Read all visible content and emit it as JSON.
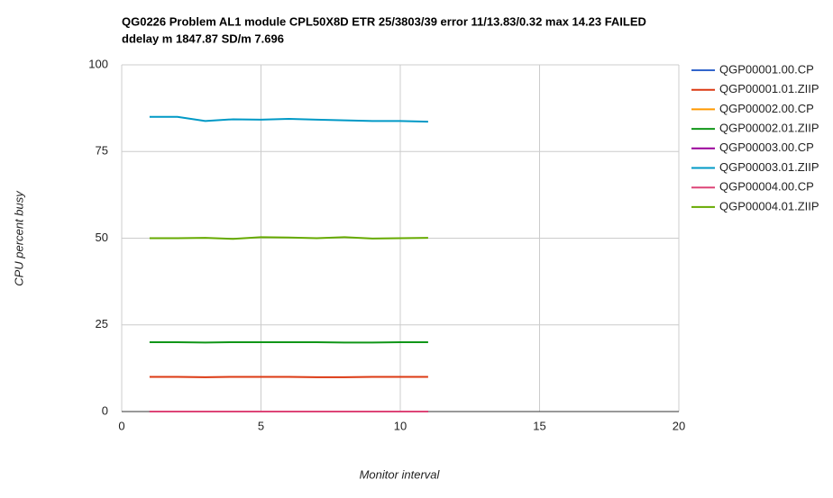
{
  "chart_data": {
    "type": "line",
    "title": [
      "QG0226 Problem AL1 module CPL50X8D ETR 25/3803/39 error 11/13.83/0.32 max 14.23 FAILED",
      "ddelay m 1847.87 SD/m 7.696"
    ],
    "x_label": "Monitor interval",
    "y_label": "CPU percent busy",
    "x": [
      1,
      2,
      3,
      4,
      5,
      6,
      7,
      8,
      9,
      10,
      11
    ],
    "series": [
      {
        "name": "QGP00001.00.CP",
        "color": "#3366cc",
        "values": [
          0,
          0,
          0,
          0,
          0,
          0,
          0,
          0,
          0,
          0,
          0
        ]
      },
      {
        "name": "QGP00001.01.ZIIP",
        "color": "#dc3912",
        "values": [
          10,
          10,
          9.9,
          10,
          10,
          10,
          9.9,
          9.9,
          10,
          10,
          10
        ]
      },
      {
        "name": "QGP00002.00.CP",
        "color": "#ff9900",
        "values": [
          0,
          0,
          0,
          0,
          0,
          0,
          0,
          0,
          0,
          0,
          0
        ]
      },
      {
        "name": "QGP00002.01.ZIIP",
        "color": "#109618",
        "values": [
          20,
          20,
          19.9,
          20,
          20,
          20,
          20,
          19.9,
          19.9,
          20,
          20
        ]
      },
      {
        "name": "QGP00003.00.CP",
        "color": "#990099",
        "values": [
          0,
          0,
          0,
          0,
          0,
          0,
          0,
          0,
          0,
          0,
          0
        ]
      },
      {
        "name": "QGP00003.01.ZIIP",
        "color": "#0099c6",
        "values": [
          85,
          85,
          83.8,
          84.3,
          84.2,
          84.4,
          84.2,
          84,
          83.8,
          83.8,
          83.6
        ]
      },
      {
        "name": "QGP00004.00.CP",
        "color": "#dd4477",
        "values": [
          0,
          0,
          0,
          0,
          0,
          0,
          0,
          0,
          0,
          0,
          0
        ]
      },
      {
        "name": "QGP00004.01.ZIIP",
        "color": "#66aa00",
        "values": [
          50,
          50,
          50.1,
          49.8,
          50.3,
          50.2,
          50,
          50.3,
          49.9,
          50,
          50.1
        ]
      }
    ],
    "xlim": [
      0,
      20
    ],
    "xticks": [
      0,
      5,
      10,
      15,
      20
    ],
    "ylim": [
      0,
      100
    ],
    "yticks": [
      0,
      25,
      50,
      75,
      100
    ],
    "grid": true,
    "legend": "right"
  }
}
